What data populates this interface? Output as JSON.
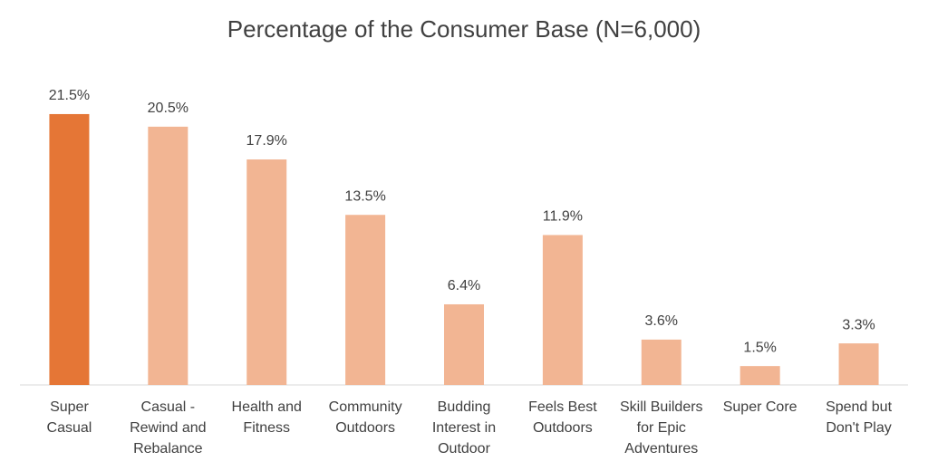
{
  "chart_data": {
    "type": "bar",
    "title": "Percentage of the Consumer Base (N=6,000)",
    "categories": [
      "Super\nCasual",
      "Casual -\nRewind and\nRebalance",
      "Health and\nFitness",
      "Community\nOutdoors",
      "Budding\nInterest in\nOutdoor",
      "Feels Best\nOutdoors",
      "Skill Builders\nfor Epic\nAdventures",
      "Super Core",
      "Spend but\nDon't Play"
    ],
    "values": [
      21.5,
      20.5,
      17.9,
      13.5,
      6.4,
      11.9,
      3.6,
      1.5,
      3.3
    ],
    "value_labels": [
      "21.5%",
      "20.5%",
      "17.9%",
      "13.5%",
      "6.4%",
      "11.9%",
      "3.6%",
      "1.5%",
      "3.3%"
    ],
    "colors": [
      "#e57636",
      "#f2b593",
      "#f2b593",
      "#f2b593",
      "#f2b593",
      "#f2b593",
      "#f2b593",
      "#f2b593",
      "#f2b593"
    ],
    "ylim": [
      0,
      22
    ]
  }
}
